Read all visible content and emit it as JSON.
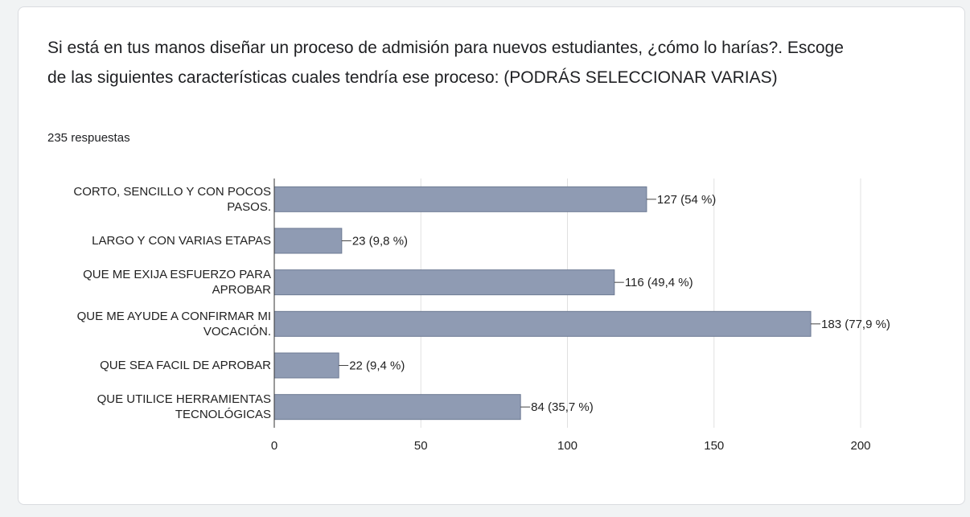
{
  "chart_data": {
    "type": "bar",
    "orientation": "horizontal",
    "title": "Si está en tus manos diseñar un proceso de admisión para nuevos estudiantes, ¿cómo lo harías?. Escoge de las siguientes características cuales tendría ese proceso: (PODRÁS SELECCIONAR VARIAS)",
    "subtitle": "235 respuestas",
    "categories": [
      "CORTO, SENCILLO Y CON POCOS PASOS.",
      "LARGO Y CON VARIAS ETAPAS",
      "QUE ME EXIJA ESFUERZO PARA APROBAR",
      "QUE ME AYUDE A CONFIRMAR MI VOCACIÓN.",
      "QUE SEA FACIL DE APROBAR",
      "QUE UTILICE HERRAMIENTAS TECNOLÓGICAS"
    ],
    "values": [
      127,
      23,
      116,
      183,
      22,
      84
    ],
    "value_labels": [
      "127 (54 %)",
      "23 (9,8 %)",
      "116 (49,4 %)",
      "183 (77,9 %)",
      "22 (9,4 %)",
      "84 (35,7 %)"
    ],
    "color": "#8f9bb3",
    "xlim": [
      0,
      200
    ],
    "xticks": [
      0,
      50,
      100,
      150,
      200
    ],
    "grid": true
  }
}
